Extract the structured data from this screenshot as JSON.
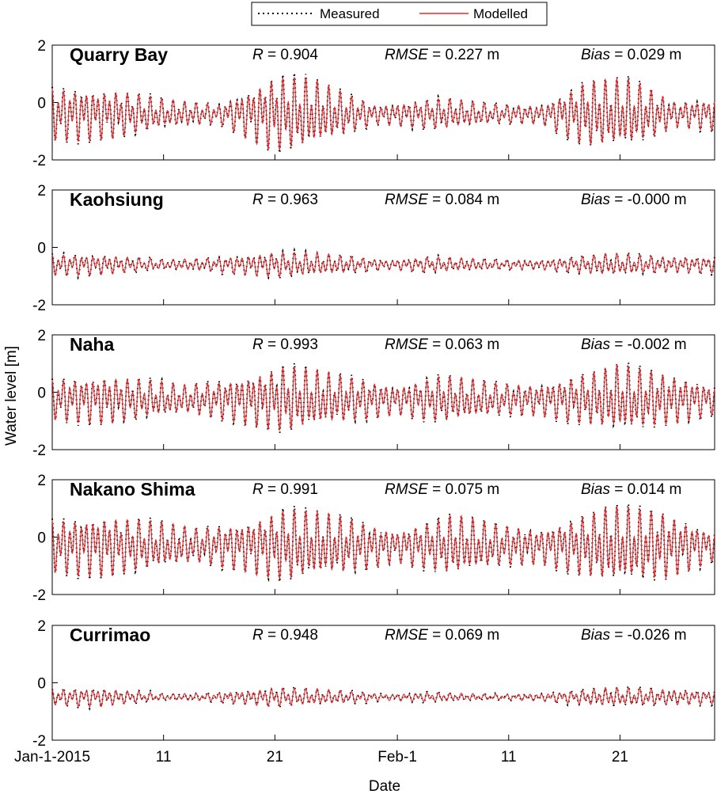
{
  "chart_data": {
    "type": "line",
    "xlabel": "Date",
    "ylabel": "Water level [m]",
    "x_range_days": [
      0,
      59.5
    ],
    "x_ticks": [
      {
        "day": 0,
        "label": "Jan-1-2015"
      },
      {
        "day": 10,
        "label": "11"
      },
      {
        "day": 20,
        "label": "21"
      },
      {
        "day": 31,
        "label": "Feb-1"
      },
      {
        "day": 41,
        "label": "11"
      },
      {
        "day": 51,
        "label": "21"
      }
    ],
    "ylim": [
      -2,
      2
    ],
    "y_ticks": [
      -2,
      0,
      2
    ],
    "legend": {
      "placement": "top-center",
      "entries": [
        {
          "name": "Measured",
          "style": "dotted",
          "color": "#000000"
        },
        {
          "name": "Modelled",
          "style": "solid",
          "color": "#e3282b"
        }
      ]
    },
    "panels": [
      {
        "station": "Quarry Bay",
        "r_key": "R",
        "r_val": " = 0.904",
        "rmse_key": "RMSE",
        "rmse_val": " = 0.227 m",
        "bias_key": "Bias",
        "bias_val": " = 0.029 m",
        "mean_level": -0.4,
        "envelope": [
          [
            0,
            0.85
          ],
          [
            6,
            0.75
          ],
          [
            10,
            0.45
          ],
          [
            15,
            0.3
          ],
          [
            20,
            1.2
          ],
          [
            23,
            1.1
          ],
          [
            29,
            0.3
          ],
          [
            35,
            0.5
          ],
          [
            40,
            0.3
          ],
          [
            44,
            0.3
          ],
          [
            48,
            1.05
          ],
          [
            52,
            1.05
          ],
          [
            56,
            0.4
          ],
          [
            59.5,
            0.5
          ]
        ]
      },
      {
        "station": "Kaohsiung",
        "r_key": "R",
        "r_val": " = 0.963",
        "rmse_key": "RMSE",
        "rmse_val": " = 0.084 m",
        "bias_key": "Bias",
        "bias_val": " = -0.000 m",
        "mean_level": -0.6,
        "envelope": [
          [
            0,
            0.35
          ],
          [
            5,
            0.3
          ],
          [
            10,
            0.15
          ],
          [
            14,
            0.2
          ],
          [
            20,
            0.4
          ],
          [
            24,
            0.35
          ],
          [
            30,
            0.15
          ],
          [
            34,
            0.25
          ],
          [
            40,
            0.15
          ],
          [
            44,
            0.15
          ],
          [
            50,
            0.35
          ],
          [
            55,
            0.25
          ],
          [
            59.5,
            0.25
          ]
        ]
      },
      {
        "station": "Naha",
        "r_key": "R",
        "r_val": " = 0.993",
        "rmse_key": "RMSE",
        "rmse_val": " = 0.063 m",
        "bias_key": "Bias",
        "bias_val": " = -0.002 m",
        "mean_level": -0.25,
        "envelope": [
          [
            0,
            0.65
          ],
          [
            5,
            0.75
          ],
          [
            12,
            0.45
          ],
          [
            16,
            0.65
          ],
          [
            21,
            1.05
          ],
          [
            26,
            0.75
          ],
          [
            31,
            0.45
          ],
          [
            35,
            0.75
          ],
          [
            40,
            0.5
          ],
          [
            44,
            0.5
          ],
          [
            51,
            1.05
          ],
          [
            56,
            0.75
          ],
          [
            59.5,
            0.45
          ]
        ]
      },
      {
        "station": "Nakano Shima",
        "r_key": "R",
        "r_val": " = 0.991",
        "rmse_key": "RMSE",
        "rmse_val": " = 0.075 m",
        "bias_key": "Bias",
        "bias_val": " = 0.014 m",
        "mean_level": -0.3,
        "envelope": [
          [
            0,
            0.85
          ],
          [
            5,
            0.95
          ],
          [
            13,
            0.55
          ],
          [
            17,
            0.75
          ],
          [
            21,
            1.15
          ],
          [
            26,
            0.9
          ],
          [
            31,
            0.5
          ],
          [
            36,
            0.95
          ],
          [
            40,
            0.65
          ],
          [
            44,
            0.55
          ],
          [
            50,
            1.2
          ],
          [
            55,
            1.05
          ],
          [
            59.5,
            0.45
          ]
        ]
      },
      {
        "station": "Currimao",
        "r_key": "R",
        "r_val": " = 0.948",
        "rmse_key": "RMSE",
        "rmse_val": " = 0.069 m",
        "bias_key": "Bias",
        "bias_val": " = -0.026 m",
        "mean_level": -0.5,
        "envelope": [
          [
            0,
            0.25
          ],
          [
            4,
            0.3
          ],
          [
            10,
            0.1
          ],
          [
            14,
            0.12
          ],
          [
            20,
            0.3
          ],
          [
            24,
            0.25
          ],
          [
            30,
            0.1
          ],
          [
            34,
            0.15
          ],
          [
            40,
            0.08
          ],
          [
            44,
            0.12
          ],
          [
            50,
            0.3
          ],
          [
            55,
            0.25
          ],
          [
            59.5,
            0.2
          ]
        ]
      }
    ]
  }
}
